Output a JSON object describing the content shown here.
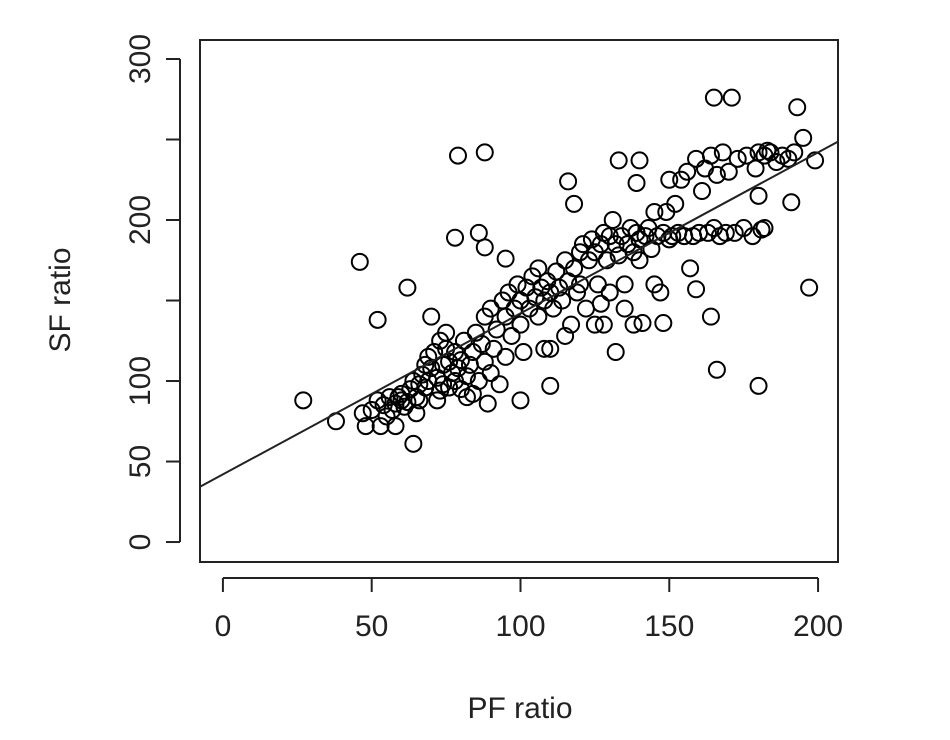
{
  "chart_data": {
    "type": "scatter",
    "xlabel": "PF ratio",
    "ylabel": "SF ratio",
    "xlim": [
      -7.7,
      206.7
    ],
    "ylim": [
      -12.4,
      311.8
    ],
    "xticks": [
      0,
      50,
      100,
      150,
      200
    ],
    "yticks": [
      0,
      50,
      100,
      200,
      300
    ],
    "yticks_unlabeled": [
      150,
      250
    ],
    "color": "#000000",
    "fit_line": {
      "intercept": 42,
      "slope": 1.0
    },
    "x": [
      27,
      38,
      46,
      52,
      62,
      64,
      79,
      88,
      78,
      86,
      88,
      95,
      100,
      110,
      116,
      118,
      133,
      140,
      139,
      148,
      157,
      159,
      164,
      166,
      165,
      171,
      180,
      193,
      195,
      197,
      191,
      199,
      183,
      180,
      181,
      50,
      52,
      54,
      55,
      56,
      58,
      60,
      60,
      62,
      63,
      64,
      65,
      66,
      67,
      68,
      68,
      69,
      70,
      71,
      72,
      73,
      73,
      74,
      75,
      75,
      76,
      77,
      78,
      78,
      79,
      80,
      80,
      81,
      82,
      83,
      84,
      84,
      85,
      86,
      87,
      88,
      88,
      89,
      90,
      90,
      91,
      92,
      93,
      94,
      95,
      95,
      96,
      97,
      98,
      99,
      100,
      100,
      101,
      102,
      103,
      104,
      105,
      106,
      106,
      107,
      108,
      108,
      109,
      110,
      110,
      111,
      112,
      113,
      114,
      115,
      116,
      117,
      118,
      119,
      120,
      120,
      121,
      122,
      123,
      124,
      125,
      126,
      127,
      128,
      128,
      129,
      130,
      130,
      131,
      132,
      132,
      133,
      134,
      135,
      136,
      137,
      138,
      139,
      140,
      140,
      141,
      142,
      143,
      144,
      145,
      145,
      146,
      147,
      148,
      149,
      150,
      150,
      151,
      152,
      153,
      154,
      155,
      156,
      158,
      159,
      160,
      161,
      162,
      163,
      164,
      165,
      166,
      167,
      168,
      169,
      170,
      172,
      173,
      175,
      176,
      178,
      179,
      180,
      182,
      182,
      184,
      186,
      188,
      190,
      192,
      125,
      127,
      135,
      138,
      115,
      70,
      72,
      65,
      58,
      53,
      48,
      47,
      57,
      61,
      59,
      66,
      69,
      74,
      76,
      82
    ],
    "values": [
      88,
      75,
      174,
      138,
      158,
      61,
      240,
      242,
      189,
      192,
      183,
      176,
      88,
      97,
      224,
      210,
      237,
      237,
      223,
      136,
      170,
      157,
      140,
      107,
      276,
      276,
      97,
      270,
      251,
      158,
      211,
      237,
      243,
      215,
      194,
      82,
      88,
      85,
      78,
      90,
      86,
      88,
      92,
      87,
      95,
      100,
      90,
      98,
      104,
      110,
      96,
      115,
      108,
      118,
      102,
      125,
      94,
      110,
      120,
      130,
      112,
      105,
      100,
      118,
      108,
      113,
      95,
      125,
      103,
      110,
      118,
      92,
      130,
      100,
      123,
      140,
      112,
      86,
      145,
      105,
      120,
      132,
      98,
      150,
      140,
      115,
      155,
      128,
      145,
      160,
      150,
      135,
      118,
      158,
      145,
      165,
      152,
      140,
      170,
      158,
      150,
      120,
      162,
      155,
      120,
      145,
      168,
      158,
      150,
      175,
      162,
      135,
      170,
      155,
      180,
      160,
      185,
      145,
      175,
      188,
      180,
      160,
      185,
      192,
      135,
      175,
      190,
      155,
      200,
      185,
      118,
      178,
      190,
      160,
      185,
      195,
      180,
      192,
      175,
      188,
      136,
      190,
      195,
      182,
      160,
      205,
      190,
      155,
      192,
      205,
      188,
      225,
      190,
      210,
      192,
      225,
      190,
      230,
      190,
      238,
      192,
      218,
      232,
      192,
      240,
      195,
      228,
      190,
      242,
      192,
      230,
      192,
      238,
      195,
      240,
      190,
      232,
      242,
      195,
      240,
      242,
      236,
      240,
      238,
      242,
      135,
      148,
      145,
      135,
      128,
      140,
      88,
      80,
      72,
      72,
      72,
      80,
      82,
      84,
      90,
      88,
      100,
      98,
      96,
      90
    ]
  }
}
